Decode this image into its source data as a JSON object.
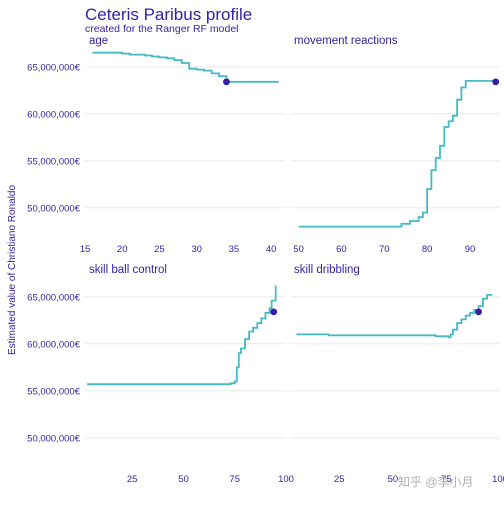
{
  "chart_data": {
    "type": "line",
    "title": "Ceteris Paribus profile",
    "subtitle": "created for the Ranger RF model",
    "ylabel": "Estimated value of Christiano Ronaldo",
    "ylim": [
      47000000,
      67000000
    ],
    "y_ticks": [
      50000000,
      55000000,
      60000000,
      65000000
    ],
    "y_tick_labels": [
      "50,000,000€",
      "55,000,000€",
      "60,000,000€",
      "65,000,000€"
    ],
    "line_color": "#46bac2",
    "point_color": "#371ea3",
    "grid": true,
    "facet_layout": "2x2",
    "panels": [
      {
        "variable": "age",
        "xlim": [
          15,
          42
        ],
        "x_ticks": [
          15,
          20,
          25,
          30,
          35,
          40
        ],
        "x_tick_labels": [
          "15",
          "20",
          "25",
          "30",
          "35",
          "40"
        ],
        "x": [
          16,
          17,
          18,
          19,
          20,
          21,
          22,
          23,
          24,
          25,
          26,
          27,
          28,
          29,
          30,
          31,
          32,
          33,
          34,
          35,
          36,
          37,
          38,
          39,
          40,
          41
        ],
        "y": [
          66500000,
          66500000,
          66500000,
          66500000,
          66400000,
          66300000,
          66300000,
          66200000,
          66100000,
          66000000,
          65900000,
          65700000,
          65400000,
          64800000,
          64700000,
          64600000,
          64300000,
          64000000,
          63400000,
          63400000,
          63400000,
          63400000,
          63400000,
          63400000,
          63400000,
          63400000
        ],
        "observation": {
          "x": 34,
          "y": 63400000
        }
      },
      {
        "variable": "movement_reactions",
        "xlim": [
          48,
          97
        ],
        "x_ticks": [
          50,
          60,
          70,
          80,
          90
        ],
        "x_tick_labels": [
          "50",
          "60",
          "70",
          "80",
          "90"
        ],
        "x": [
          50,
          55,
          60,
          65,
          70,
          72,
          74,
          76,
          78,
          79,
          80,
          81,
          82,
          83,
          84,
          85,
          86,
          87,
          88,
          89,
          90,
          92,
          94,
          96
        ],
        "y": [
          48000000,
          48000000,
          48000000,
          48000000,
          48000000,
          48000000,
          48300000,
          48600000,
          49000000,
          49500000,
          52000000,
          54000000,
          55300000,
          56600000,
          58600000,
          59200000,
          59800000,
          61500000,
          62800000,
          63500000,
          63500000,
          63500000,
          63500000,
          63400000
        ],
        "observation": {
          "x": 96,
          "y": 63400000
        }
      },
      {
        "variable": "skill_ball_control",
        "xlim": [
          2,
          100
        ],
        "x_ticks": [
          25,
          50,
          75,
          100
        ],
        "x_tick_labels": [
          "25",
          "50",
          "75",
          "100"
        ],
        "x": [
          3,
          10,
          20,
          30,
          40,
          50,
          60,
          70,
          73,
          75,
          76,
          77,
          78,
          80,
          82,
          84,
          86,
          88,
          90,
          92,
          93,
          95
        ],
        "y": [
          55700000,
          55700000,
          55700000,
          55700000,
          55700000,
          55700000,
          55700000,
          55700000,
          55800000,
          56000000,
          57500000,
          59000000,
          59500000,
          60500000,
          61300000,
          61700000,
          62200000,
          62700000,
          63300000,
          63800000,
          64600000,
          66200000
        ],
        "observation": {
          "x": 94,
          "y": 63400000
        }
      },
      {
        "variable": "skill_dribbling",
        "xlim": [
          2,
          100
        ],
        "x_ticks": [
          25,
          50,
          75,
          100
        ],
        "x_tick_labels": [
          "25",
          "50",
          "75",
          "100"
        ],
        "x": [
          5,
          10,
          20,
          30,
          40,
          50,
          60,
          70,
          76,
          77,
          78,
          80,
          82,
          84,
          86,
          88,
          90,
          92,
          94,
          96
        ],
        "y": [
          61000000,
          61000000,
          60900000,
          60900000,
          60900000,
          60900000,
          60900000,
          60800000,
          60700000,
          61000000,
          61500000,
          62200000,
          62600000,
          63000000,
          63300000,
          63600000,
          64000000,
          64800000,
          65200000,
          65300000
        ],
        "observation": {
          "x": 90,
          "y": 63400000
        }
      }
    ]
  },
  "watermark": "知乎 @李小月"
}
